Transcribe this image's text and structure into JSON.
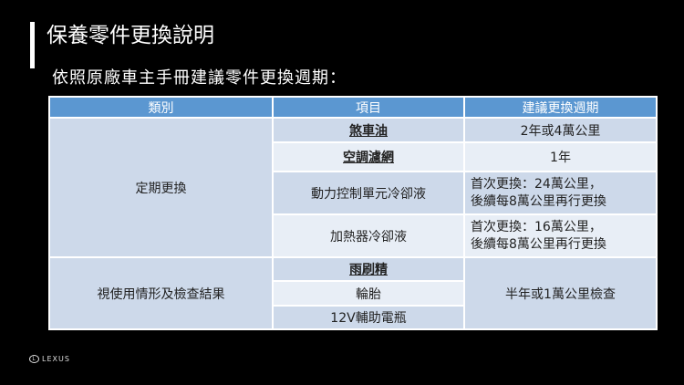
{
  "title": "保養零件更換說明",
  "subtitle": "依照原廠車主手冊建議零件更換週期：",
  "table": {
    "headers": [
      "類別",
      "項目",
      "建議更換週期"
    ],
    "groups": [
      {
        "category": "定期更換",
        "rows": [
          {
            "item": "煞車油",
            "period": "2年或4萬公里"
          },
          {
            "item": "空調濾網",
            "period": "1年"
          },
          {
            "item": "動力控制單元冷卻液",
            "period_line1": "首次更換：24萬公里，",
            "period_line2": "後續每8萬公里再行更換"
          },
          {
            "item": "加熱器冷卻液",
            "period_line1": "首次更換：16萬公里，",
            "period_line2": "後續每8萬公里再行更換"
          }
        ]
      },
      {
        "category": "視使用情形及檢查結果",
        "period": "半年或1萬公里檢查",
        "rows": [
          {
            "item": "雨刷精"
          },
          {
            "item": "輪胎"
          },
          {
            "item": "12V輔助電瓶"
          }
        ]
      }
    ]
  },
  "logo": "LEXUS",
  "colors": {
    "header": "#5b97d1",
    "row_dark": "#cdd9ea",
    "row_light": "#e8eef6",
    "background": "#000000"
  }
}
